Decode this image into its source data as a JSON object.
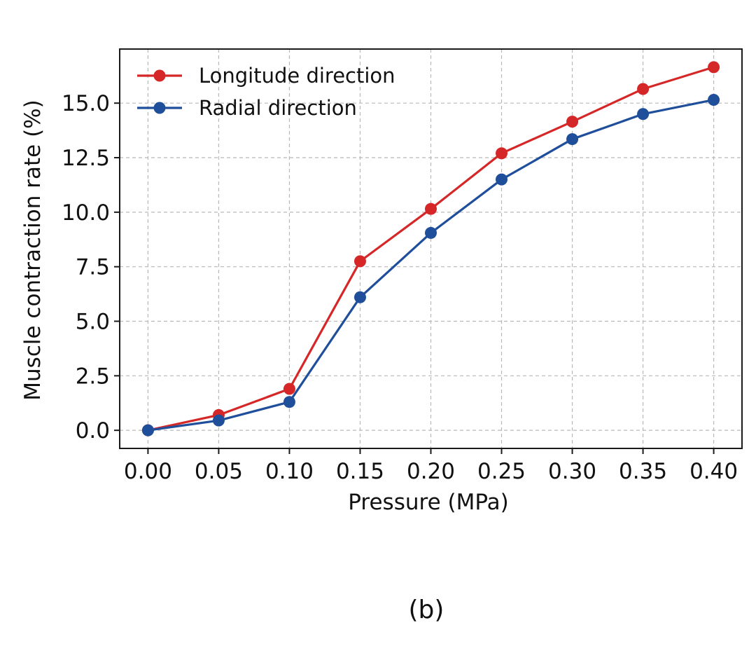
{
  "chart_data": {
    "type": "line",
    "title": "",
    "xlabel": "Pressure (MPa)",
    "ylabel": "Muscle contraction rate (%)",
    "x": [
      0.0,
      0.05,
      0.1,
      0.15,
      0.2,
      0.25,
      0.3,
      0.35,
      0.4
    ],
    "x_tick_labels": [
      "0.00",
      "0.05",
      "0.10",
      "0.15",
      "0.20",
      "0.25",
      "0.30",
      "0.35",
      "0.40"
    ],
    "y_ticks": [
      0.0,
      2.5,
      5.0,
      7.5,
      10.0,
      12.5,
      15.0
    ],
    "y_tick_labels": [
      "0.0",
      "2.5",
      "5.0",
      "7.5",
      "10.0",
      "12.5",
      "15.0"
    ],
    "xlim": [
      -0.02,
      0.42
    ],
    "ylim": [
      -0.83,
      17.48
    ],
    "grid": true,
    "legend_position": "top-left",
    "series": [
      {
        "name": "Longitude direction",
        "color": "#d62728",
        "values": [
          0.0,
          0.7,
          1.9,
          7.75,
          10.15,
          12.7,
          14.15,
          15.65,
          16.65
        ]
      },
      {
        "name": "Radial direction",
        "color": "#1f4e9a",
        "values": [
          0.0,
          0.45,
          1.3,
          6.1,
          9.05,
          11.5,
          13.35,
          14.5,
          15.15
        ]
      }
    ]
  },
  "panel_label": "(b)"
}
